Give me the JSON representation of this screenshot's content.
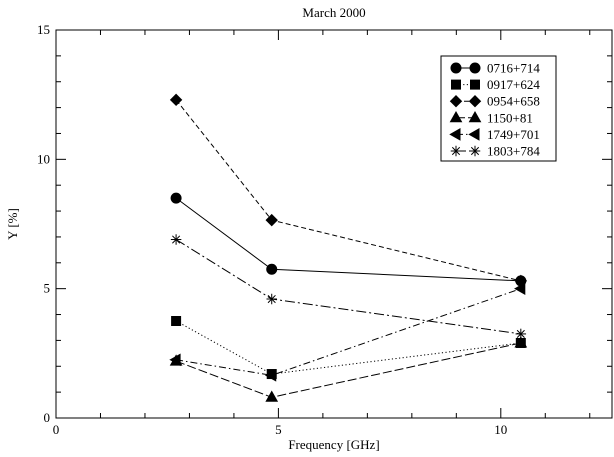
{
  "chart_data": {
    "type": "line",
    "title": "March 2000",
    "xlabel": "Frequency [GHz]",
    "ylabel": "Y [%]",
    "xlim": [
      0,
      12.5
    ],
    "ylim": [
      0,
      15
    ],
    "xticks": [
      0,
      5,
      10
    ],
    "yticks": [
      0,
      5,
      10,
      15
    ],
    "x_minor_step": 1,
    "y_minor_step": 1,
    "grid": false,
    "legend_position": "top-right",
    "x": [
      2.7,
      4.85,
      10.45
    ],
    "series": [
      {
        "name": "0716+714",
        "marker": "circle",
        "dash": "solid",
        "values": [
          8.5,
          5.75,
          5.3
        ]
      },
      {
        "name": "0917+624",
        "marker": "square",
        "dash": "dotted",
        "values": [
          3.75,
          1.7,
          2.9
        ]
      },
      {
        "name": "0954+658",
        "marker": "diamond",
        "dash": "dashed",
        "values": [
          12.3,
          7.65,
          5.3
        ]
      },
      {
        "name": "1150+81",
        "marker": "triangle-up",
        "dash": "long-dash",
        "values": [
          2.2,
          0.8,
          2.9
        ]
      },
      {
        "name": "1749+701",
        "marker": "triangle-left",
        "dash": "dash-dot",
        "values": [
          2.25,
          1.65,
          5.0
        ]
      },
      {
        "name": "1803+784",
        "marker": "star",
        "dash": "dash-dot-long",
        "values": [
          6.9,
          4.6,
          3.25
        ]
      }
    ]
  }
}
